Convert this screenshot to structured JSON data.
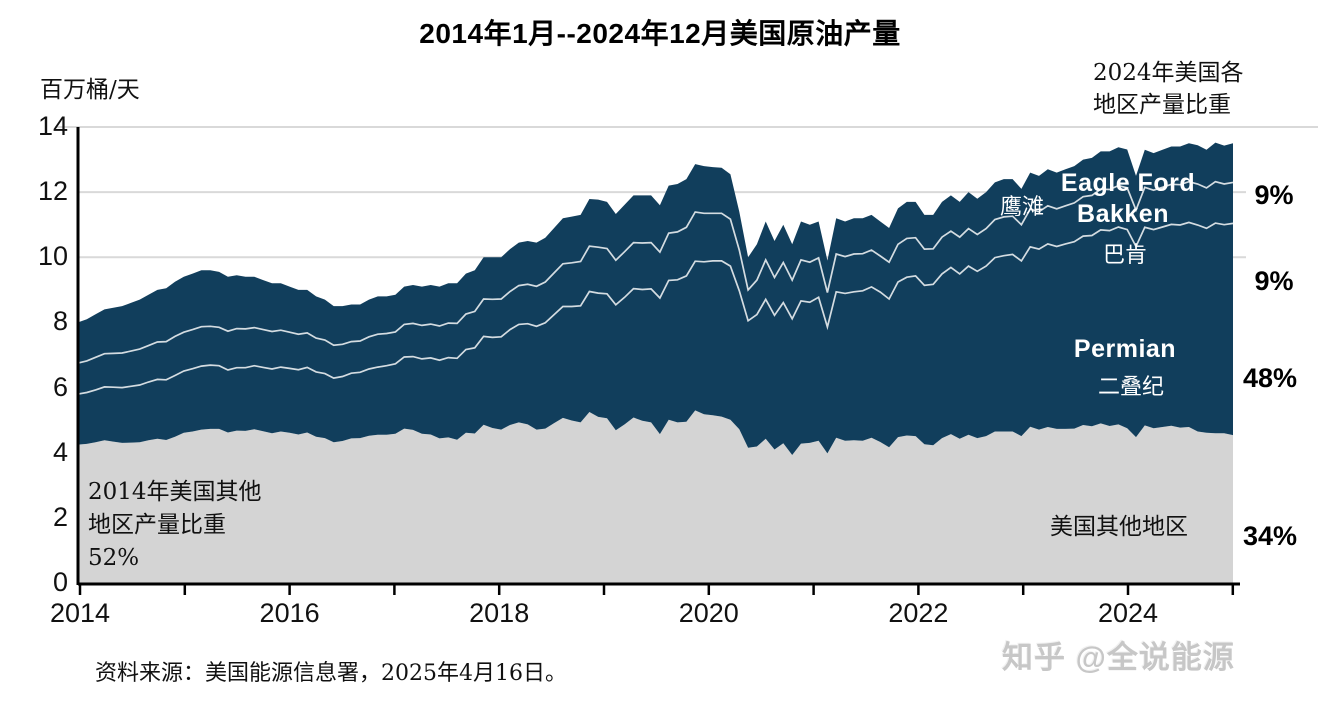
{
  "title": "2014年1月--2024年12月美国原油产量",
  "y_axis": {
    "unit_label": "百万桶/天",
    "ticks": [
      0,
      2,
      4,
      6,
      8,
      10,
      12,
      14
    ]
  },
  "x_axis": {
    "tick_years": [
      2014,
      2015,
      2016,
      2017,
      2018,
      2019,
      2020,
      2021,
      2022,
      2023,
      2024,
      2025
    ],
    "labeled_years": [
      "2014",
      "2016",
      "2018",
      "2020",
      "2022",
      "2024"
    ]
  },
  "right_legend": {
    "header_line1": "2024年美国各",
    "header_line2": "地区产量比重",
    "shares": [
      {
        "region": "Eagle Ford",
        "value": "9%"
      },
      {
        "region": "Bakken",
        "value": "9%"
      },
      {
        "region": "Permian",
        "value": "48%"
      },
      {
        "region": "美国其他地区",
        "value": "34%"
      }
    ]
  },
  "area_labels": {
    "eagle_ford_en": "Eagle Ford",
    "eagle_ford_zh": "鹰滩",
    "bakken_en": "Bakken",
    "bakken_zh": "巴肯",
    "permian_en": "Permian",
    "permian_zh": "二叠纪",
    "other_zh": "美国其他地区"
  },
  "bottom_left_note": {
    "line1": "2014年美国其他",
    "line2": "地区产量比重",
    "line3": "52%"
  },
  "source": "资料来源：美国能源信息署，2025年4月16日。",
  "watermark": "知乎 @全说能源",
  "colors": {
    "navy_area": "#113e5c",
    "gray_area": "#d4d4d4",
    "boundary_line": "rgba(255,255,255,0.82)",
    "gridline": "#d9d9d9",
    "axis": "#000000",
    "text": "#111111",
    "watermark": "#c7c7c7"
  },
  "chart_data": {
    "type": "area",
    "stacked": true,
    "title": "2014年1月--2024年12月美国原油产量",
    "ylabel": "百万桶/天",
    "ylim": [
      0,
      14
    ],
    "x_start_year": 2014,
    "x_end_year_inclusive": 2024,
    "frequency": "monthly",
    "grid_values": [
      10,
      12,
      14
    ],
    "legend_position": "in-plot annotations",
    "series": [
      {
        "name": "美国其他地区",
        "name_en": "Other US regions",
        "share_2024": "34%",
        "share_2014": "52%",
        "values": [
          4.25,
          4.27,
          4.32,
          4.38,
          4.34,
          4.3,
          4.31,
          4.32,
          4.38,
          4.43,
          4.39,
          4.49,
          4.61,
          4.65,
          4.71,
          4.73,
          4.73,
          4.62,
          4.68,
          4.67,
          4.72,
          4.66,
          4.6,
          4.65,
          4.61,
          4.56,
          4.62,
          4.49,
          4.45,
          4.32,
          4.36,
          4.44,
          4.45,
          4.52,
          4.55,
          4.55,
          4.58,
          4.74,
          4.7,
          4.58,
          4.56,
          4.44,
          4.47,
          4.4,
          4.61,
          4.59,
          4.86,
          4.76,
          4.71,
          4.85,
          4.93,
          4.87,
          4.71,
          4.74,
          4.91,
          5.07,
          4.99,
          4.93,
          5.25,
          5.1,
          5.06,
          4.69,
          4.87,
          5.08,
          4.98,
          4.93,
          4.57,
          5.01,
          4.93,
          4.95,
          5.3,
          5.18,
          5.15,
          5.11,
          5.01,
          4.72,
          4.15,
          4.19,
          4.43,
          4.1,
          4.29,
          3.93,
          4.28,
          4.3,
          4.37,
          3.98,
          4.46,
          4.37,
          4.38,
          4.37,
          4.46,
          4.33,
          4.17,
          4.48,
          4.53,
          4.51,
          4.26,
          4.23,
          4.45,
          4.57,
          4.43,
          4.55,
          4.45,
          4.51,
          4.65,
          4.65,
          4.65,
          4.51,
          4.8,
          4.71,
          4.79,
          4.73,
          4.73,
          4.74,
          4.85,
          4.81,
          4.9,
          4.82,
          4.87,
          4.75,
          4.48,
          4.84,
          4.75,
          4.79,
          4.83,
          4.77,
          4.79,
          4.65,
          4.61,
          4.6,
          4.6,
          4.54
        ]
      },
      {
        "name": "二叠纪",
        "name_en": "Permian",
        "share_2024": "48%",
        "values": [
          1.55,
          1.58,
          1.61,
          1.64,
          1.67,
          1.7,
          1.73,
          1.76,
          1.79,
          1.82,
          1.85,
          1.88,
          1.9,
          1.93,
          1.95,
          1.96,
          1.94,
          1.92,
          1.93,
          1.94,
          1.95,
          1.96,
          1.97,
          1.98,
          1.98,
          1.99,
          2.0,
          1.99,
          1.98,
          1.97,
          1.98,
          2.0,
          2.02,
          2.05,
          2.08,
          2.12,
          2.15,
          2.2,
          2.25,
          2.3,
          2.35,
          2.4,
          2.45,
          2.5,
          2.56,
          2.63,
          2.71,
          2.78,
          2.85,
          2.93,
          3.01,
          3.09,
          3.17,
          3.25,
          3.33,
          3.42,
          3.5,
          3.58,
          3.7,
          3.8,
          3.82,
          3.85,
          3.9,
          3.96,
          4.03,
          4.1,
          4.18,
          4.28,
          4.38,
          4.48,
          4.58,
          4.68,
          4.74,
          4.78,
          4.72,
          4.25,
          3.9,
          4.05,
          4.28,
          4.12,
          4.32,
          4.18,
          4.38,
          4.32,
          4.4,
          3.88,
          4.48,
          4.52,
          4.56,
          4.6,
          4.63,
          4.6,
          4.55,
          4.76,
          4.86,
          4.92,
          4.88,
          4.94,
          5.04,
          5.12,
          5.06,
          5.18,
          5.12,
          5.22,
          5.34,
          5.4,
          5.44,
          5.38,
          5.52,
          5.54,
          5.62,
          5.6,
          5.68,
          5.74,
          5.8,
          5.86,
          5.94,
          6.0,
          6.06,
          6.1,
          5.85,
          6.08,
          6.1,
          6.14,
          6.18,
          6.22,
          6.28,
          6.34,
          6.28,
          6.45,
          6.4,
          6.5
        ]
      },
      {
        "name": "巴肯",
        "name_en": "Bakken",
        "share_2024": "9%",
        "values": [
          0.95,
          0.97,
          1.0,
          1.02,
          1.04,
          1.06,
          1.08,
          1.1,
          1.12,
          1.15,
          1.17,
          1.2,
          1.19,
          1.2,
          1.21,
          1.19,
          1.18,
          1.19,
          1.2,
          1.19,
          1.17,
          1.16,
          1.15,
          1.13,
          1.11,
          1.09,
          1.06,
          1.04,
          1.03,
          1.01,
          0.99,
          0.97,
          0.96,
          0.99,
          1.01,
          0.99,
          0.98,
          1.0,
          1.02,
          1.03,
          1.04,
          1.05,
          1.06,
          1.07,
          1.09,
          1.12,
          1.15,
          1.17,
          1.16,
          1.17,
          1.19,
          1.21,
          1.23,
          1.25,
          1.28,
          1.31,
          1.34,
          1.36,
          1.39,
          1.41,
          1.39,
          1.37,
          1.4,
          1.41,
          1.43,
          1.42,
          1.41,
          1.45,
          1.47,
          1.49,
          1.51,
          1.49,
          1.46,
          1.46,
          1.44,
          1.25,
          0.95,
          1.06,
          1.21,
          1.16,
          1.23,
          1.19,
          1.26,
          1.23,
          1.21,
          1.06,
          1.16,
          1.13,
          1.16,
          1.14,
          1.13,
          1.11,
          1.13,
          1.16,
          1.19,
          1.17,
          1.11,
          1.09,
          1.13,
          1.11,
          1.13,
          1.15,
          1.13,
          1.15,
          1.17,
          1.19,
          1.17,
          1.11,
          1.16,
          1.15,
          1.17,
          1.16,
          1.17,
          1.19,
          1.21,
          1.23,
          1.25,
          1.26,
          1.27,
          1.28,
          1.12,
          1.23,
          1.21,
          1.22,
          1.23,
          1.24,
          1.25,
          1.26,
          1.24,
          1.27,
          1.25,
          1.26
        ]
      },
      {
        "name": "鹰滩",
        "name_en": "Eagle Ford",
        "share_2024": "9%",
        "values": [
          1.25,
          1.28,
          1.32,
          1.36,
          1.4,
          1.44,
          1.48,
          1.52,
          1.56,
          1.6,
          1.64,
          1.68,
          1.7,
          1.72,
          1.73,
          1.72,
          1.7,
          1.67,
          1.64,
          1.6,
          1.56,
          1.52,
          1.48,
          1.44,
          1.4,
          1.36,
          1.32,
          1.28,
          1.24,
          1.2,
          1.17,
          1.14,
          1.12,
          1.14,
          1.16,
          1.14,
          1.14,
          1.16,
          1.18,
          1.19,
          1.2,
          1.21,
          1.22,
          1.23,
          1.24,
          1.26,
          1.28,
          1.29,
          1.28,
          1.3,
          1.32,
          1.33,
          1.34,
          1.36,
          1.38,
          1.4,
          1.42,
          1.43,
          1.45,
          1.46,
          1.43,
          1.42,
          1.44,
          1.45,
          1.46,
          1.45,
          1.44,
          1.46,
          1.47,
          1.48,
          1.47,
          1.45,
          1.42,
          1.4,
          1.38,
          1.18,
          1.0,
          1.1,
          1.18,
          1.12,
          1.16,
          1.1,
          1.18,
          1.15,
          1.12,
          0.98,
          1.1,
          1.08,
          1.1,
          1.09,
          1.08,
          1.06,
          1.05,
          1.1,
          1.12,
          1.1,
          1.05,
          1.04,
          1.08,
          1.1,
          1.08,
          1.12,
          1.1,
          1.12,
          1.14,
          1.16,
          1.14,
          1.1,
          1.12,
          1.1,
          1.12,
          1.11,
          1.12,
          1.13,
          1.14,
          1.15,
          1.16,
          1.17,
          1.18,
          1.18,
          1.05,
          1.15,
          1.14,
          1.15,
          1.16,
          1.17,
          1.18,
          1.19,
          1.17,
          1.2,
          1.18,
          1.2
        ]
      }
    ]
  }
}
